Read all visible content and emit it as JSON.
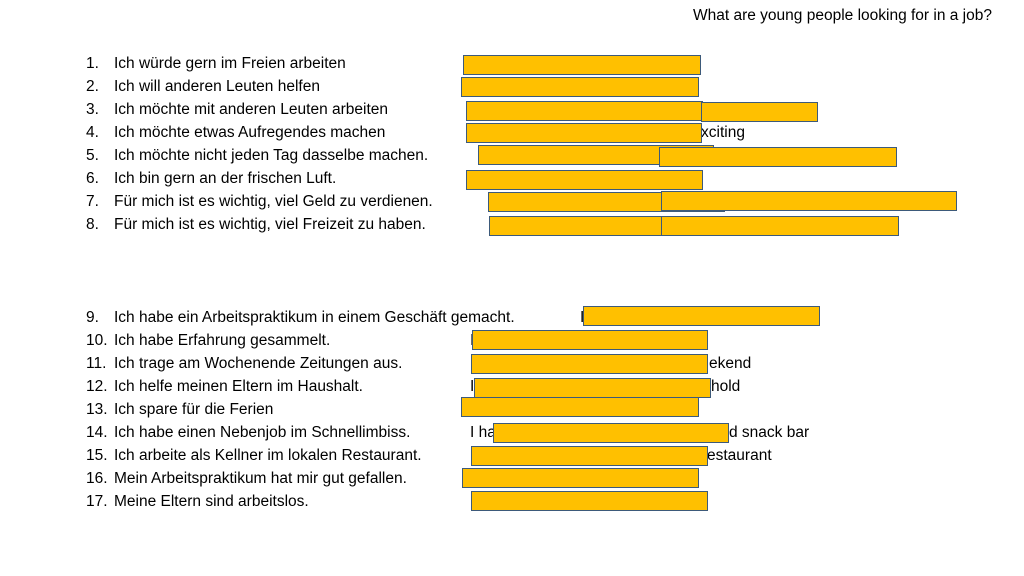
{
  "title": "What are young people looking for in a job?",
  "colors": {
    "cover_box_fill": "#ffc000",
    "cover_box_border": "#3d5a7a"
  },
  "items": [
    {
      "num": "1.",
      "text": "Ich würde gern im Freien arbeiten"
    },
    {
      "num": "2.",
      "text": "Ich will anderen Leuten helfen"
    },
    {
      "num": "3.",
      "text": "Ich möchte mit anderen Leuten arbeiten"
    },
    {
      "num": "4.",
      "text": "Ich möchte etwas Aufregendes machen"
    },
    {
      "num": "5.",
      "text": "Ich möchte nicht jeden Tag dasselbe machen."
    },
    {
      "num": "6.",
      "text": "Ich bin gern an der frischen Luft."
    },
    {
      "num": "7.",
      "text": "Für mich ist es wichtig, viel Geld zu verdienen."
    },
    {
      "num": "8.",
      "text": "Für mich ist es wichtig, viel Freizeit zu haben."
    },
    {
      "num": "9.",
      "text": "Ich habe ein Arbeitspraktikum in einem Geschäft gemacht."
    },
    {
      "num": "10.",
      "text": "Ich habe Erfahrung gesammelt."
    },
    {
      "num": "11.",
      "text": "Ich trage am Wochenende Zeitungen aus."
    },
    {
      "num": "12.",
      "text": "Ich helfe meinen Eltern im Haushalt."
    },
    {
      "num": "13.",
      "text": "Ich spare für die Ferien"
    },
    {
      "num": "14.",
      "text": "Ich habe einen Nebenjob im Schnellimbiss."
    },
    {
      "num": "15.",
      "text": "Ich arbeite als Kellner im lokalen Restaurant."
    },
    {
      "num": "16.",
      "text": "Mein Arbeitspraktikum hat mir gut gefallen."
    },
    {
      "num": "17.",
      "text": "Meine Eltern sind arbeitslos."
    }
  ],
  "visible_fragments": {
    "f4": "xciting",
    "f9": "I",
    "f10": "I",
    "f11a": "I",
    "f11b": "ekend",
    "f12a": "I",
    "f12b": "hold",
    "f14a": "I ha",
    "f14b": "d snack bar",
    "f15a": "I",
    "f15b": "estaurant",
    "f17": "I"
  }
}
